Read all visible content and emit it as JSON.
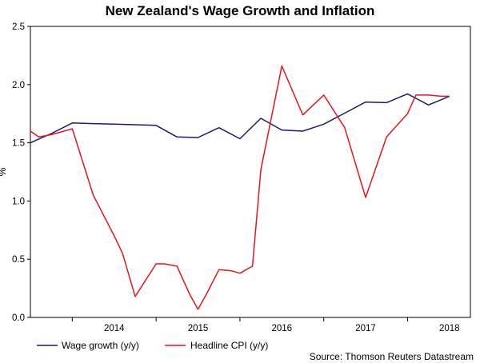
{
  "chart_data": {
    "type": "line",
    "title": "New Zealand's Wage Growth and Inflation",
    "ylabel": "%",
    "xlabel": "",
    "source": "Source: Thomson Reuters Datastream",
    "ylim": [
      0.0,
      2.5
    ],
    "yticks": [
      "0.0",
      "0.5",
      "1.0",
      "1.5",
      "2.0",
      "2.5"
    ],
    "xlim": [
      2013.5,
      2018.75
    ],
    "xticks": [
      "2014",
      "2015",
      "2016",
      "2017",
      "2018"
    ],
    "legend_position": "bottom",
    "grid": false,
    "series": [
      {
        "name": "Wage growth (y/y)",
        "color": "#1a1a7a",
        "x": [
          2013.5,
          2013.75,
          2014.0,
          2014.25,
          2014.5,
          2014.75,
          2015.0,
          2015.25,
          2015.5,
          2015.75,
          2016.0,
          2016.25,
          2016.5,
          2016.75,
          2017.0,
          2017.25,
          2017.5,
          2017.75,
          2018.0,
          2018.25,
          2018.5
        ],
        "values": [
          1.5,
          1.58,
          1.67,
          1.665,
          1.66,
          1.655,
          1.65,
          1.55,
          1.545,
          1.63,
          1.535,
          1.71,
          1.61,
          1.6,
          1.66,
          1.755,
          1.85,
          1.845,
          1.92,
          1.825,
          1.9
        ]
      },
      {
        "name": "Headline CPI (y/y)",
        "color": "#e8141e",
        "x": [
          2013.5,
          2013.6,
          2013.75,
          2014.0,
          2014.25,
          2014.5,
          2014.6,
          2014.75,
          2015.0,
          2015.1,
          2015.25,
          2015.4,
          2015.5,
          2015.6,
          2015.75,
          2015.9,
          2016.0,
          2016.15,
          2016.25,
          2016.5,
          2016.75,
          2017.0,
          2017.25,
          2017.5,
          2017.75,
          2018.0,
          2018.1,
          2018.25,
          2018.4,
          2018.5
        ],
        "values": [
          1.6,
          1.55,
          1.57,
          1.62,
          1.05,
          0.7,
          0.55,
          0.18,
          0.46,
          0.46,
          0.44,
          0.2,
          0.07,
          0.2,
          0.41,
          0.4,
          0.38,
          0.44,
          1.27,
          2.16,
          1.74,
          1.91,
          1.63,
          1.03,
          1.55,
          1.75,
          1.91,
          1.91,
          1.9,
          1.9
        ]
      }
    ]
  }
}
